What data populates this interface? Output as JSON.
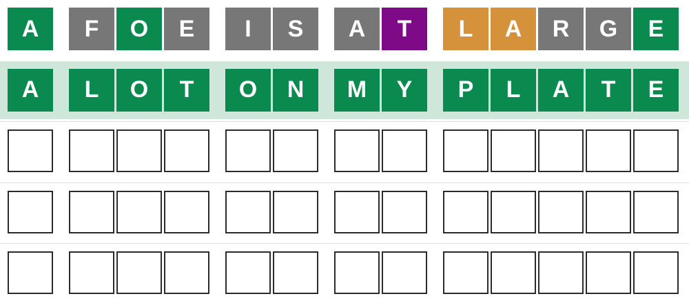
{
  "rows": [
    {
      "words": [
        [
          {
            "letter": "A",
            "color": "#0b8a4f"
          }
        ],
        [
          {
            "letter": "F",
            "color": "#777777"
          },
          {
            "letter": "O",
            "color": "#0b8a4f"
          },
          {
            "letter": "E",
            "color": "#777777"
          }
        ],
        [
          {
            "letter": "I",
            "color": "#777777"
          },
          {
            "letter": "S",
            "color": "#777777"
          }
        ],
        [
          {
            "letter": "A",
            "color": "#777777"
          },
          {
            "letter": "T",
            "color": "#7e0a87"
          }
        ],
        [
          {
            "letter": "L",
            "color": "#d5923b"
          },
          {
            "letter": "A",
            "color": "#d5923b"
          },
          {
            "letter": "R",
            "color": "#777777"
          },
          {
            "letter": "G",
            "color": "#777777"
          },
          {
            "letter": "E",
            "color": "#0b8a4f"
          }
        ]
      ]
    },
    {
      "background": "#cfe7da",
      "words": [
        [
          {
            "letter": "A",
            "color": "#0b8a4f"
          }
        ],
        [
          {
            "letter": "L",
            "color": "#0b8a4f"
          },
          {
            "letter": "O",
            "color": "#0b8a4f"
          },
          {
            "letter": "T",
            "color": "#0b8a4f"
          }
        ],
        [
          {
            "letter": "O",
            "color": "#0b8a4f"
          },
          {
            "letter": "N",
            "color": "#0b8a4f"
          }
        ],
        [
          {
            "letter": "M",
            "color": "#0b8a4f"
          },
          {
            "letter": "Y",
            "color": "#0b8a4f"
          }
        ],
        [
          {
            "letter": "P",
            "color": "#0b8a4f"
          },
          {
            "letter": "L",
            "color": "#0b8a4f"
          },
          {
            "letter": "A",
            "color": "#0b8a4f"
          },
          {
            "letter": "T",
            "color": "#0b8a4f"
          },
          {
            "letter": "E",
            "color": "#0b8a4f"
          }
        ]
      ]
    }
  ],
  "empty_rows": 3
}
